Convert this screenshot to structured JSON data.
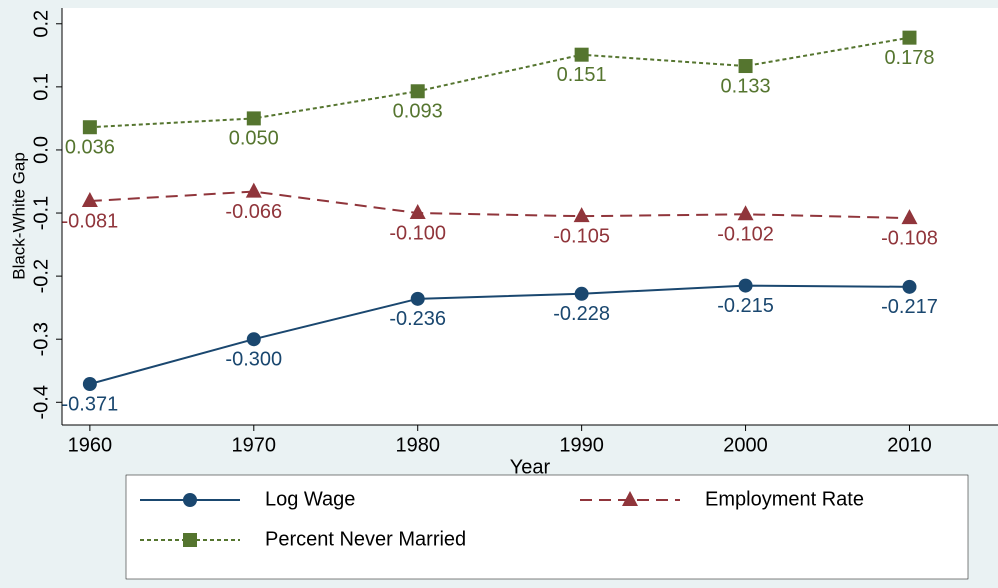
{
  "chart_data": {
    "type": "line",
    "y_label": "Black-White Gap",
    "x_label": "Year",
    "x": [
      1960,
      1970,
      1980,
      1990,
      2000,
      2010
    ],
    "xlim": [
      1958.3,
      2015.4
    ],
    "xticks": [
      1960,
      1970,
      1980,
      1990,
      2000,
      2010
    ],
    "ylim": [
      -0.436,
      0.225
    ],
    "yticks": [
      -0.4,
      -0.3,
      -0.2,
      -0.1,
      {
        "value": 0,
        "label": "0.0"
      },
      0.1,
      0.2
    ],
    "series": [
      {
        "name": "Log Wage",
        "color": "#1a476f",
        "marker": "circle",
        "dash": "none",
        "values": [
          -0.371,
          -0.3,
          -0.236,
          -0.228,
          -0.215,
          -0.217
        ],
        "value_labels": [
          "-0.371",
          "-0.300",
          "-0.236",
          "-0.228",
          "-0.215",
          "-0.217"
        ]
      },
      {
        "name": "Employment Rate",
        "color": "#90353b",
        "marker": "triangle",
        "dash": "12,7",
        "values": [
          -0.081,
          -0.066,
          -0.1,
          -0.105,
          -0.102,
          -0.108
        ],
        "value_labels": [
          "-0.081",
          "-0.066",
          "-0.100",
          "-0.105",
          "-0.102",
          "-0.108"
        ]
      },
      {
        "name": "Percent Never Married",
        "color": "#55752f",
        "marker": "square",
        "dash": "4,3",
        "values": [
          0.036,
          0.05,
          0.093,
          0.151,
          0.133,
          0.178
        ],
        "value_labels": [
          "0.036",
          "0.050",
          "0.093",
          "0.151",
          "0.133",
          "0.178"
        ]
      }
    ]
  }
}
